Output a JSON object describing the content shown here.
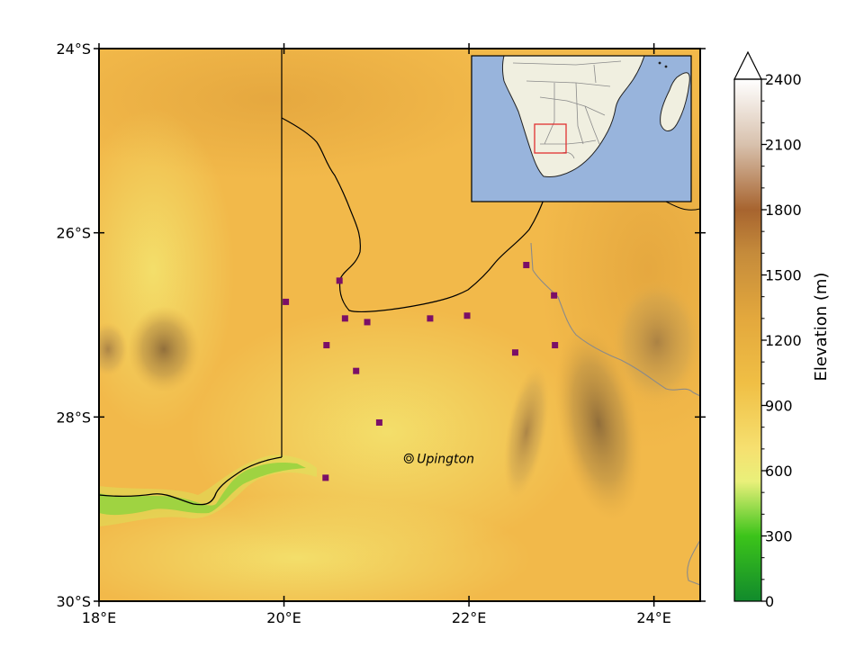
{
  "map": {
    "lat_ticks": [
      "24°S",
      "26°S",
      "28°S",
      "30°S"
    ],
    "lon_ticks": [
      "18°E",
      "20°E",
      "22°E",
      "24°E"
    ],
    "extent": {
      "lon_min": 18.0,
      "lon_max": 24.5,
      "lat_min": -30.0,
      "lat_max": -24.0
    },
    "city": {
      "label": "Upington",
      "lon": 21.35,
      "lat": -28.45,
      "marker": "bullseye-icon"
    },
    "stations": [
      {
        "lon": 20.02,
        "lat": -26.75
      },
      {
        "lon": 20.6,
        "lat": -26.52
      },
      {
        "lon": 20.66,
        "lat": -26.93
      },
      {
        "lon": 20.9,
        "lat": -26.97
      },
      {
        "lon": 21.58,
        "lat": -26.93
      },
      {
        "lon": 21.98,
        "lat": -26.9
      },
      {
        "lon": 22.62,
        "lat": -26.35
      },
      {
        "lon": 22.92,
        "lat": -26.68
      },
      {
        "lon": 20.46,
        "lat": -27.22
      },
      {
        "lon": 20.78,
        "lat": -27.5
      },
      {
        "lon": 22.5,
        "lat": -27.3
      },
      {
        "lon": 22.93,
        "lat": -27.22
      },
      {
        "lon": 21.03,
        "lat": -28.06
      },
      {
        "lon": 20.45,
        "lat": -28.66
      }
    ],
    "colors": {
      "station": "#7b0f67",
      "border": "#000000",
      "province_border": "#8a8a8a",
      "terrain_base": "#f2b94a"
    }
  },
  "inset": {
    "ocean_color": "#98b4dc",
    "land_color": "#f0efe0",
    "box_color": "#e03030"
  },
  "colorbar": {
    "label": "Elevation (m)",
    "ticks": [
      "2400",
      "2100",
      "1800",
      "1500",
      "1200",
      "900",
      "600",
      "300",
      "0"
    ],
    "range": [
      0,
      2400
    ],
    "extend": "max",
    "colormap": [
      {
        "value": 0,
        "color": "#118a2c"
      },
      {
        "value": 300,
        "color": "#3cc41a"
      },
      {
        "value": 550,
        "color": "#e9f07a"
      },
      {
        "value": 700,
        "color": "#f6e070"
      },
      {
        "value": 1000,
        "color": "#f0bf45"
      },
      {
        "value": 1300,
        "color": "#e3a83d"
      },
      {
        "value": 1600,
        "color": "#c58b3b"
      },
      {
        "value": 1800,
        "color": "#a7642f"
      },
      {
        "value": 2100,
        "color": "#d8c1ad"
      },
      {
        "value": 2400,
        "color": "#ffffff"
      }
    ]
  }
}
